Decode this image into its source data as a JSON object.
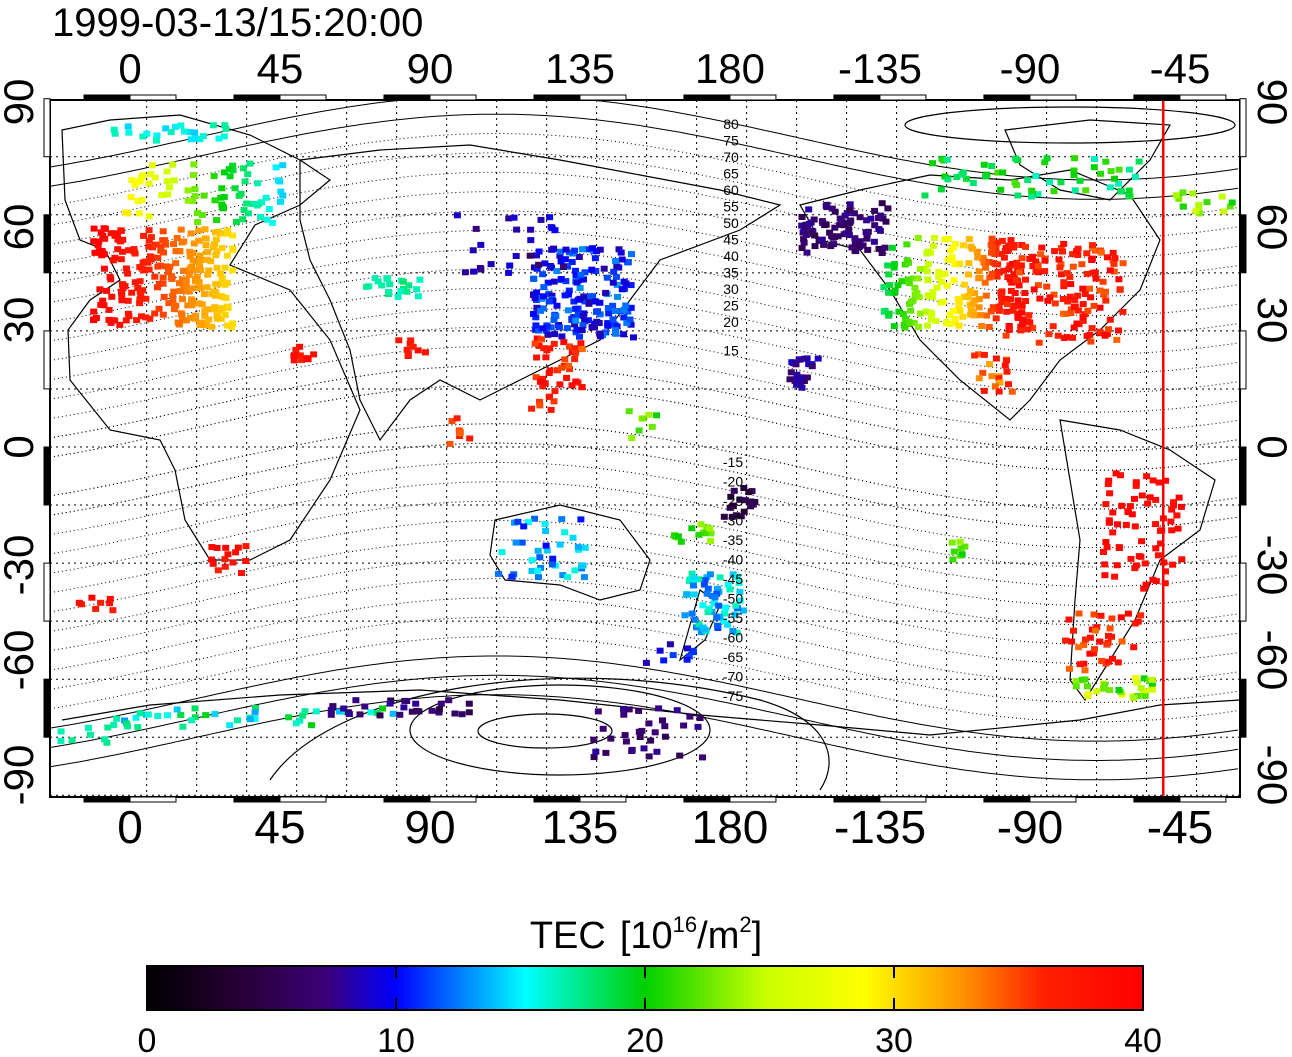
{
  "timestamp": "1999-03-13/15:20:00",
  "lon_ticks": [
    "0",
    "45",
    "90",
    "135",
    "180",
    "-135",
    "-90",
    "-45"
  ],
  "lat_ticks": [
    "90",
    "60",
    "30",
    "0",
    "-30",
    "-60",
    "-90"
  ],
  "contour_labels_north": [
    "80",
    "75",
    "70",
    "65",
    "60",
    "55",
    "50",
    "45",
    "40",
    "35",
    "30",
    "25",
    "20",
    "15"
  ],
  "contour_labels_south": [
    "-15",
    "-20",
    "-25",
    "-30",
    "-35",
    "-40",
    "-45",
    "-50",
    "-55",
    "-60",
    "-65",
    "-70",
    "-75"
  ],
  "colorbar": {
    "title": "TEC",
    "unit_open": "[10",
    "unit_exp": "16",
    "unit_mid": "/m",
    "unit_sq": "2",
    "unit_close": "]",
    "tick_labels": [
      "0",
      "10",
      "20",
      "30",
      "40"
    ],
    "range": [
      0,
      40
    ],
    "colors": [
      "#000000",
      "#3a0068",
      "#0000ff",
      "#00ffff",
      "#00d000",
      "#ffff00",
      "#ff0000"
    ]
  },
  "terminator_color": "#ff0000",
  "terminator_lon": -50
}
